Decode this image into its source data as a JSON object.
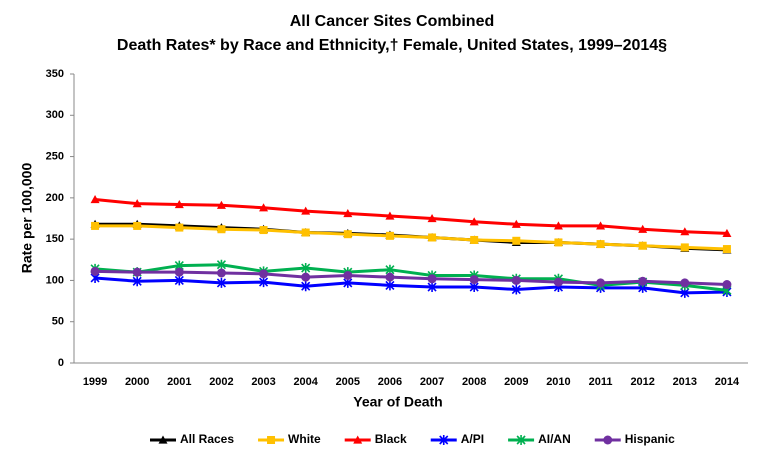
{
  "chart_data": {
    "type": "line",
    "title": "All Cancer Sites Combined",
    "subtitle": "Death Rates* by Race and Ethnicity,†  Female, United States, 1999–2014§",
    "x_label": "Year of Death",
    "y_label": "Rate per 100,000",
    "categories": [
      "1999",
      "2000",
      "2001",
      "2002",
      "2003",
      "2004",
      "2005",
      "2006",
      "2007",
      "2008",
      "2009",
      "2010",
      "2011",
      "2012",
      "2013",
      "2014"
    ],
    "ylim": [
      0,
      350
    ],
    "yticks": [
      0,
      50,
      100,
      150,
      200,
      250,
      300,
      350
    ],
    "grid": false,
    "legend": "bottom",
    "series": [
      {
        "name": "All Races",
        "color": "#000000",
        "marker": "triangle",
        "values": [
          168,
          168,
          166,
          164,
          162,
          158,
          157,
          155,
          152,
          149,
          146,
          146,
          144,
          142,
          139,
          137
        ]
      },
      {
        "name": "White",
        "color": "#ffc000",
        "marker": "square",
        "values": [
          166,
          166,
          164,
          162,
          161,
          158,
          156,
          154,
          152,
          149,
          148,
          146,
          144,
          142,
          140,
          138
        ]
      },
      {
        "name": "Black",
        "color": "#ff0000",
        "marker": "triangle",
        "values": [
          198,
          193,
          192,
          191,
          188,
          184,
          181,
          178,
          175,
          171,
          168,
          166,
          166,
          162,
          159,
          157
        ]
      },
      {
        "name": "A/PI",
        "color": "#0000ff",
        "marker": "star",
        "values": [
          103,
          99,
          100,
          97,
          98,
          93,
          97,
          94,
          92,
          92,
          89,
          92,
          91,
          91,
          85,
          86
        ]
      },
      {
        "name": "AI/AN",
        "color": "#00b050",
        "marker": "star",
        "values": [
          114,
          110,
          118,
          119,
          111,
          115,
          110,
          113,
          106,
          106,
          102,
          102,
          94,
          98,
          94,
          88
        ]
      },
      {
        "name": "Hispanic",
        "color": "#7030a0",
        "marker": "circle",
        "values": [
          111,
          110,
          110,
          109,
          108,
          104,
          106,
          104,
          102,
          101,
          100,
          98,
          97,
          99,
          97,
          95
        ]
      }
    ]
  }
}
